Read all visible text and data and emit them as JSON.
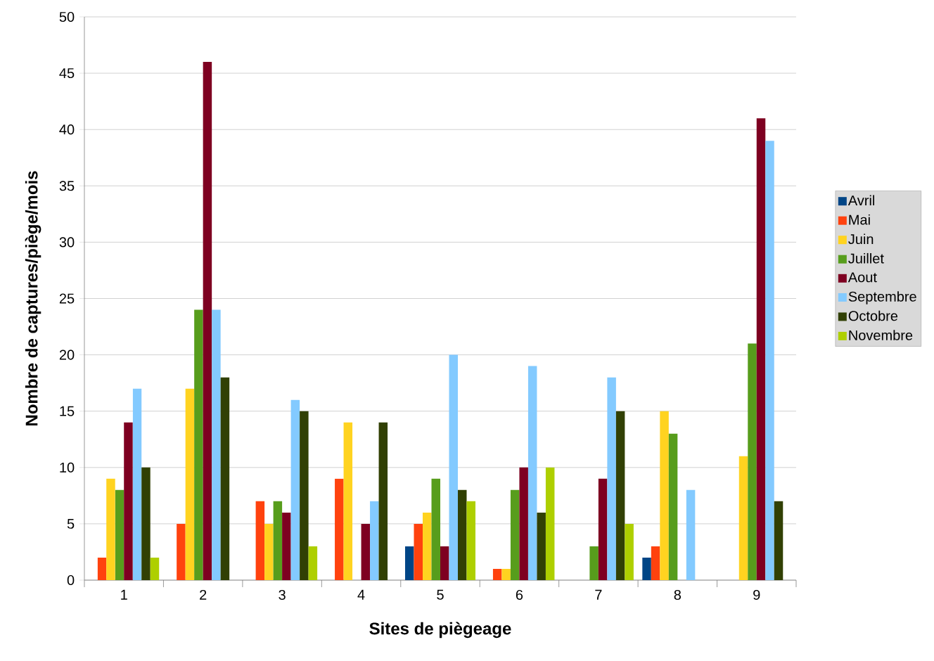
{
  "chart_data": {
    "type": "bar",
    "xlabel": "Sites de piègeage",
    "ylabel": "Nombre de captures/piège/mois",
    "categories": [
      "1",
      "2",
      "3",
      "4",
      "5",
      "6",
      "7",
      "8",
      "9"
    ],
    "series": [
      {
        "name": "Avril",
        "color": "#004586",
        "values": [
          0,
          0,
          0,
          0,
          3,
          0,
          0,
          2,
          0
        ]
      },
      {
        "name": "Mai",
        "color": "#ff420e",
        "values": [
          2,
          5,
          7,
          9,
          5,
          1,
          0,
          3,
          0
        ]
      },
      {
        "name": "Juin",
        "color": "#ffd320",
        "values": [
          9,
          17,
          5,
          14,
          6,
          1,
          0,
          15,
          11
        ]
      },
      {
        "name": "Juillet",
        "color": "#579d1c",
        "values": [
          8,
          24,
          7,
          0,
          9,
          8,
          3,
          13,
          21
        ]
      },
      {
        "name": "Aout",
        "color": "#7e0021",
        "values": [
          14,
          46,
          6,
          5,
          3,
          10,
          9,
          0,
          41
        ]
      },
      {
        "name": "Septembre",
        "color": "#83caff",
        "values": [
          17,
          24,
          16,
          7,
          20,
          19,
          18,
          8,
          39
        ]
      },
      {
        "name": "Octobre",
        "color": "#314004",
        "values": [
          10,
          18,
          15,
          14,
          8,
          6,
          15,
          0,
          7
        ]
      },
      {
        "name": "Novembre",
        "color": "#aecf00",
        "values": [
          2,
          0,
          3,
          0,
          7,
          10,
          5,
          0,
          0
        ]
      }
    ],
    "ylim": [
      0,
      50
    ],
    "yticks": [
      0,
      5,
      10,
      15,
      20,
      25,
      30,
      35,
      40,
      45,
      50
    ],
    "grid": "y",
    "legend": "right"
  }
}
